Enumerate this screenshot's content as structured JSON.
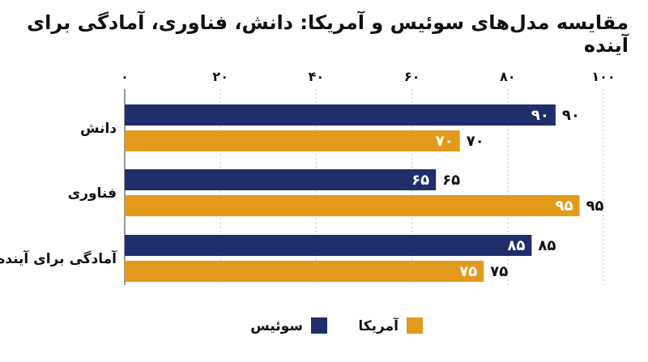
{
  "chart_data": {
    "type": "bar",
    "orientation": "horizontal",
    "title": "مقایسه مدل‌های سوئیس و آمریکا: دانش، فناوری، آمادگی برای آینده",
    "categories": [
      "دانش",
      "فناوری",
      "آمادگی برای آینده"
    ],
    "series": [
      {
        "name": "سوئیس",
        "color": "#1f2d6b",
        "values": [
          90,
          65,
          85
        ],
        "labels": [
          "۹۰",
          "۶۵",
          "۸۵"
        ]
      },
      {
        "name": "آمریکا",
        "color": "#e39a1c",
        "values": [
          70,
          95,
          75
        ],
        "labels": [
          "۷۰",
          "۹۵",
          "۷۵"
        ]
      }
    ],
    "xlim": [
      0,
      100
    ],
    "xticks": [
      0,
      20,
      40,
      60,
      80,
      100
    ],
    "xtick_labels": [
      "۰",
      "۲۰",
      "۴۰",
      "۶۰",
      "۸۰",
      "۱۰۰"
    ],
    "axis_position": "top",
    "grid": true,
    "legend_position": "bottom-center"
  }
}
